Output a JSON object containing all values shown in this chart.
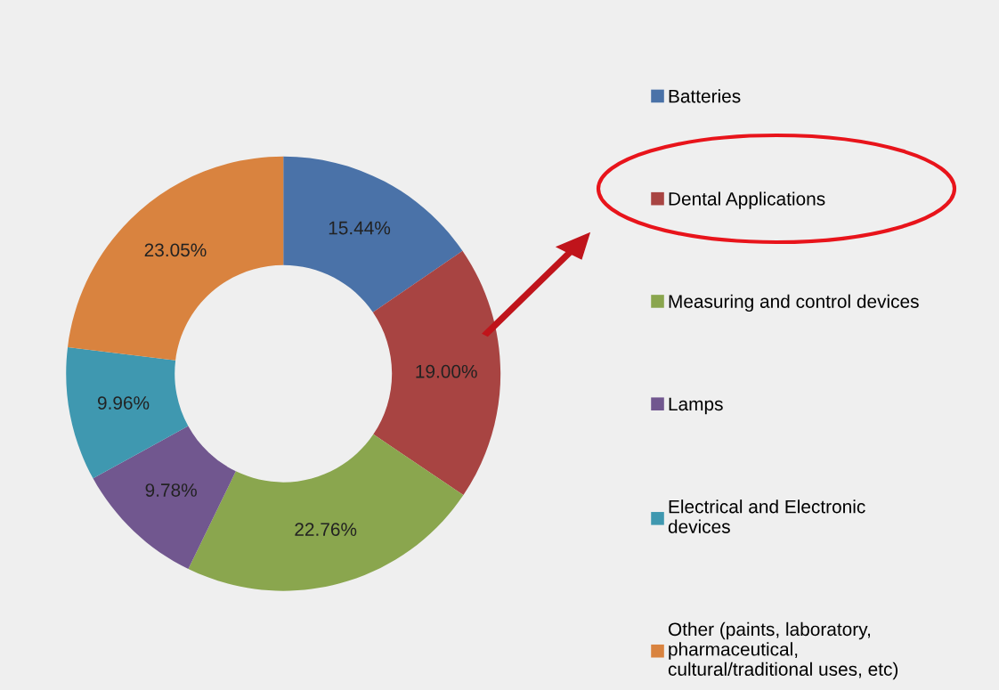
{
  "chart_data": {
    "type": "donut",
    "categories": [
      "Batteries",
      "Dental Applications",
      "Measuring and control devices",
      "Lamps",
      "Electrical and Electronic\ndevices",
      "Other (paints, laboratory,\npharmaceutical,\ncultural/traditional uses, etc)"
    ],
    "values": [
      15.44,
      19.0,
      22.76,
      9.78,
      9.96,
      23.05
    ],
    "value_labels": [
      "15.44%",
      "19.00%",
      "22.76%",
      "9.78%",
      "9.96%",
      "23.05%"
    ],
    "colors": [
      "#4a72a8",
      "#a84442",
      "#8aa64e",
      "#71578f",
      "#3f98b0",
      "#d9833f"
    ],
    "legend": "right"
  }
}
